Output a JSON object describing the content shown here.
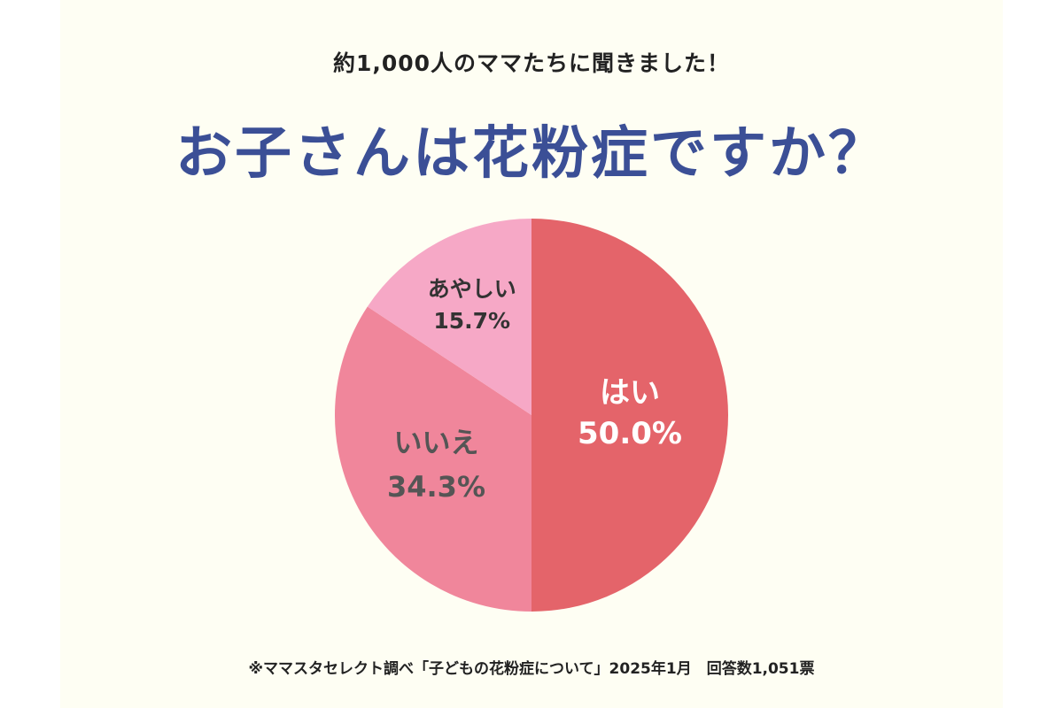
{
  "header": {
    "subtitle": "約1,000人のママたちに聞きました！",
    "title": "お子さんは花粉症ですか？"
  },
  "chart_data": {
    "type": "pie",
    "slices": [
      {
        "label": "はい",
        "value": 50.0,
        "value_text": "50.0%",
        "color": "#e4646a",
        "text_color": "#ffffff"
      },
      {
        "label": "いいえ",
        "value": 34.3,
        "value_text": "34.3%",
        "color": "#f0869b",
        "text_color": "#555555"
      },
      {
        "label": "あやしい",
        "value": 15.7,
        "value_text": "15.7%",
        "color": "#f6a8c6",
        "text_color": "#333333"
      }
    ],
    "start": "12 o'clock",
    "direction": "clockwise"
  },
  "footer": {
    "note": "※ママスタセレクト調べ「子どもの花粉症について」2025年1月　回答数1,051票"
  },
  "colors": {
    "background": "#fefef3",
    "title": "#3b4f96"
  }
}
